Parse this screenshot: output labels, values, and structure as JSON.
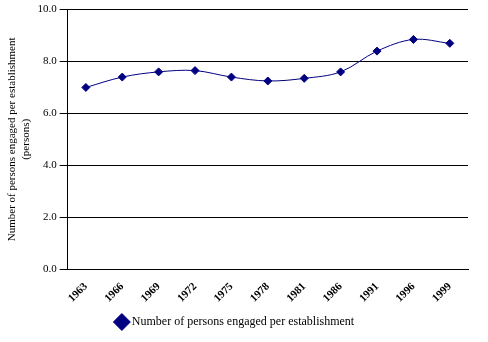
{
  "chart_data": {
    "type": "line",
    "y_label": [
      "Number of persons engaged per establishment",
      "(persons)"
    ],
    "categories": [
      "1963",
      "1966",
      "1969",
      "1972",
      "1975",
      "1978",
      "1981",
      "1986",
      "1991",
      "1996",
      "1999"
    ],
    "series": [
      {
        "name": "Number of persons engaged per establishment",
        "color": "#000080",
        "marker": "diamond",
        "line_style": "solid",
        "values": [
          7.0,
          7.4,
          7.6,
          7.65,
          7.4,
          7.25,
          7.35,
          7.6,
          8.4,
          8.85,
          8.7
        ]
      }
    ],
    "ylim": [
      0,
      10
    ],
    "yticks": [
      {
        "value": 0,
        "label": "0.0"
      },
      {
        "value": 2,
        "label": "2.0"
      },
      {
        "value": 4,
        "label": "4.0"
      },
      {
        "value": 6,
        "label": "6.0"
      },
      {
        "value": 8,
        "label": "8.0"
      },
      {
        "value": 10,
        "label": "10.0"
      }
    ],
    "grid": true,
    "legend": "bottom"
  }
}
